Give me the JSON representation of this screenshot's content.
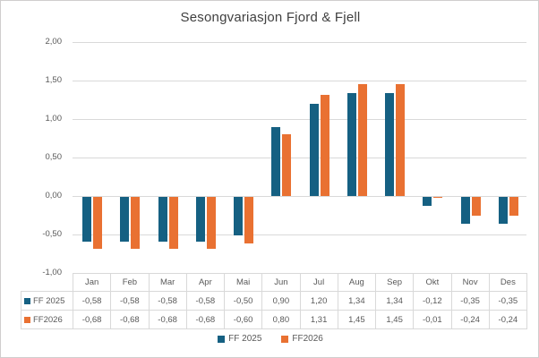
{
  "chart_data": {
    "type": "bar",
    "title": "Sesongvariasjon Fjord & Fjell",
    "categories": [
      "Jan",
      "Feb",
      "Mar",
      "Apr",
      "Mai",
      "Jun",
      "Jul",
      "Aug",
      "Sep",
      "Okt",
      "Nov",
      "Des"
    ],
    "series": [
      {
        "name": "FF 2025",
        "color": "#156082",
        "values": [
          -0.58,
          -0.58,
          -0.58,
          -0.58,
          -0.5,
          0.9,
          1.2,
          1.34,
          1.34,
          -0.12,
          -0.35,
          -0.35
        ],
        "display_values": [
          "-0,58",
          "-0,58",
          "-0,58",
          "-0,58",
          "-0,50",
          "0,90",
          "1,20",
          "1,34",
          "1,34",
          "-0,12",
          "-0,35",
          "-0,35"
        ]
      },
      {
        "name": "FF2026",
        "color": "#E97132",
        "values": [
          -0.68,
          -0.68,
          -0.68,
          -0.68,
          -0.6,
          0.8,
          1.31,
          1.45,
          1.45,
          -0.01,
          -0.24,
          -0.24
        ],
        "display_values": [
          "-0,68",
          "-0,68",
          "-0,68",
          "-0,68",
          "-0,60",
          "0,80",
          "1,31",
          "1,45",
          "1,45",
          "-0,01",
          "-0,24",
          "-0,24"
        ]
      }
    ],
    "y_axis": {
      "min": -1.0,
      "max": 2.0,
      "step": 0.5,
      "tick_labels": [
        "2,00",
        "1,50",
        "1,00",
        "0,50",
        "0,00",
        "-0,50",
        "-1,00"
      ]
    },
    "grid": "horizontal gridlines only",
    "legend_position": "bottom",
    "data_table_shown": true
  },
  "colors": {
    "series1": "#156082",
    "series2": "#E97132",
    "gridline": "#d9d9d9",
    "table_border": "#d9d9d9",
    "text": "#595959",
    "title_text": "#404040",
    "background": "#ffffff"
  }
}
